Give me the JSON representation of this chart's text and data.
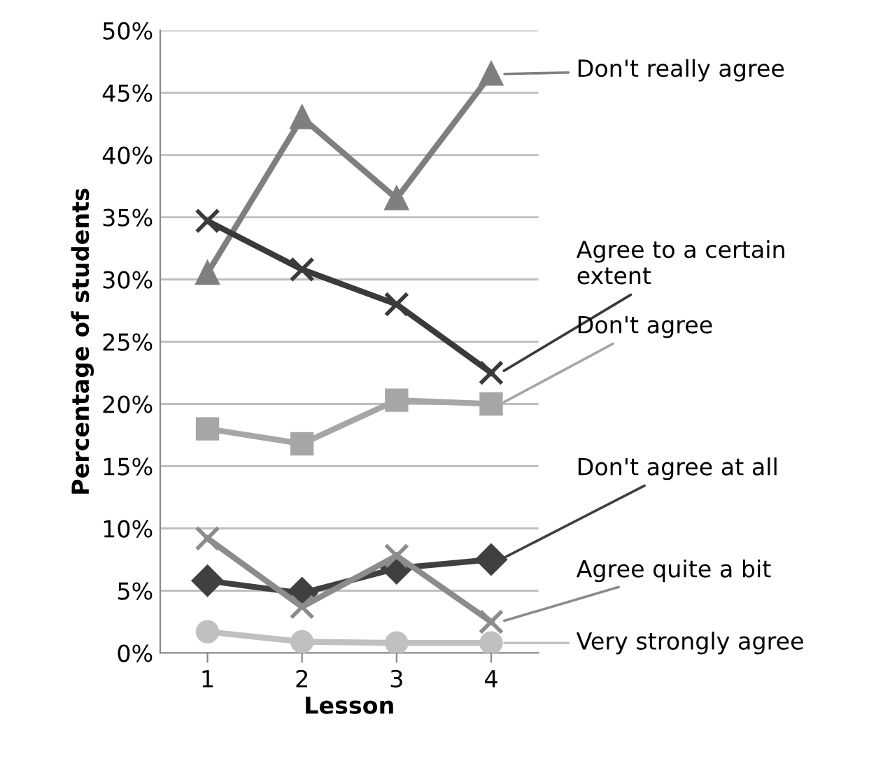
{
  "chart_data": {
    "type": "line",
    "xlabel": "Lesson",
    "ylabel": "Percentage of students",
    "categories": [
      "1",
      "2",
      "3",
      "4"
    ],
    "ylim": [
      0,
      50
    ],
    "yticks": [
      {
        "value": 0,
        "label": "0%"
      },
      {
        "value": 5,
        "label": "5%"
      },
      {
        "value": 10,
        "label": "10%"
      },
      {
        "value": 15,
        "label": "15%"
      },
      {
        "value": 20,
        "label": "20%"
      },
      {
        "value": 25,
        "label": "25%"
      },
      {
        "value": 30,
        "label": "30%"
      },
      {
        "value": 35,
        "label": "35%"
      },
      {
        "value": 40,
        "label": "40%"
      },
      {
        "value": 45,
        "label": "45%"
      },
      {
        "value": 50,
        "label": "50%"
      }
    ],
    "grid": "y",
    "legend": "right",
    "series": [
      {
        "name": "Don't really agree",
        "color": "#7f7f7f",
        "marker": "triangle",
        "values": [
          30.5,
          43,
          36.5,
          46.5
        ]
      },
      {
        "name": "Agree to a certain extent",
        "color": "#3a3a3a",
        "marker": "cross",
        "values": [
          34.7,
          30.8,
          28,
          22.5
        ]
      },
      {
        "name": "Don't agree",
        "color": "#a6a6a6",
        "marker": "square",
        "values": [
          18,
          16.8,
          20.3,
          20
        ]
      },
      {
        "name": "Don't agree at all",
        "color": "#404040",
        "marker": "diamond",
        "values": [
          5.8,
          4.8,
          6.8,
          7.5
        ]
      },
      {
        "name": "Agree quite a bit",
        "color": "#8c8c8c",
        "marker": "cross",
        "values": [
          9.2,
          3.7,
          7.8,
          2.5
        ]
      },
      {
        "name": "Very strongly agree",
        "color": "#c0c0c0",
        "marker": "circle",
        "values": [
          1.7,
          0.9,
          0.8,
          0.8
        ]
      }
    ]
  }
}
